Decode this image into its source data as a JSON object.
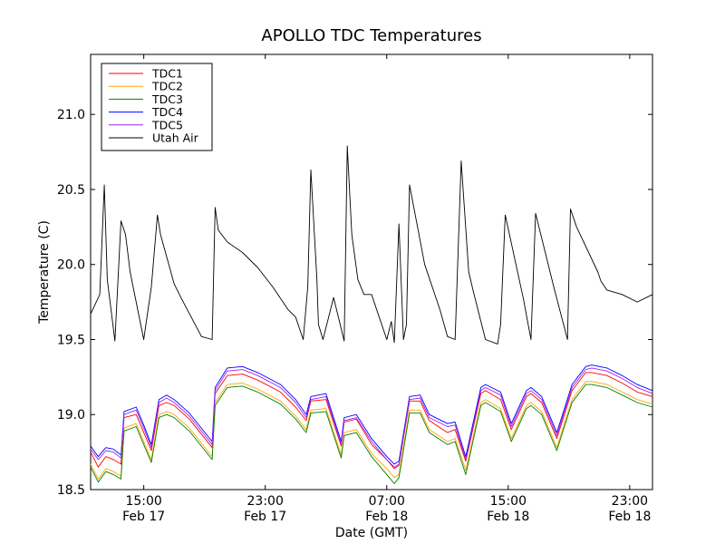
{
  "chart_data": {
    "type": "line",
    "title": "APOLLO TDC Temperatures",
    "xlabel": "Date (GMT)",
    "ylabel": "Temperature (C)",
    "ylim": [
      18.5,
      21.4
    ],
    "xlim_hours": [
      0,
      37
    ],
    "grid": false,
    "legend_position": "top-left",
    "yticks": [
      {
        "value": 18.5,
        "label": "18.5"
      },
      {
        "value": 19.0,
        "label": "19.0"
      },
      {
        "value": 19.5,
        "label": "19.5"
      },
      {
        "value": 20.0,
        "label": "20.0"
      },
      {
        "value": 20.5,
        "label": "20.5"
      },
      {
        "value": 21.0,
        "label": "21.0"
      }
    ],
    "xticks": [
      {
        "hour": 3.5,
        "time": "15:00",
        "date": "Feb 17"
      },
      {
        "hour": 11.5,
        "time": "23:00",
        "date": "Feb 17"
      },
      {
        "hour": 19.5,
        "time": "07:00",
        "date": "Feb 18"
      },
      {
        "hour": 27.5,
        "time": "15:00",
        "date": "Feb 18"
      },
      {
        "hour": 35.5,
        "time": "23:00",
        "date": "Feb 18"
      }
    ],
    "series": [
      {
        "name": "TDC1",
        "color": "#ff0000",
        "x": [
          0,
          0.5,
          1.0,
          1.5,
          2.0,
          2.2,
          3.0,
          3.5,
          4.0,
          4.5,
          5.0,
          5.5,
          6.5,
          8.0,
          8.2,
          9.0,
          10.0,
          11.0,
          12.5,
          13.5,
          14.2,
          14.5,
          15.5,
          16.5,
          16.7,
          17.5,
          18.5,
          19.5,
          20.0,
          20.3,
          21.0,
          21.7,
          22.3,
          23.5,
          24.0,
          24.7,
          25.7,
          26.0,
          27.0,
          27.7,
          28.7,
          29.0,
          29.7,
          30.7,
          31.7,
          32.6,
          33.0,
          34.0,
          35.0,
          36.0,
          37.0
        ],
        "y": [
          18.75,
          18.65,
          18.72,
          18.7,
          18.67,
          18.98,
          19.0,
          18.88,
          18.76,
          19.06,
          19.08,
          19.06,
          18.97,
          18.78,
          19.14,
          19.26,
          19.27,
          19.23,
          19.15,
          19.05,
          18.96,
          19.09,
          19.1,
          18.79,
          18.95,
          18.97,
          18.8,
          18.7,
          18.64,
          18.66,
          19.09,
          19.09,
          18.96,
          18.88,
          18.9,
          18.69,
          19.14,
          19.16,
          19.1,
          18.9,
          19.12,
          19.14,
          19.08,
          18.84,
          19.16,
          19.28,
          19.28,
          19.26,
          19.21,
          19.15,
          19.12
        ]
      },
      {
        "name": "TDC2",
        "color": "#ffa500",
        "x": [
          0,
          0.5,
          1.0,
          1.5,
          2.0,
          2.2,
          3.0,
          3.5,
          4.0,
          4.5,
          5.0,
          5.5,
          6.5,
          8.0,
          8.2,
          9.0,
          10.0,
          11.0,
          12.5,
          13.5,
          14.2,
          14.5,
          15.5,
          16.5,
          16.7,
          17.5,
          18.5,
          19.5,
          20.0,
          20.3,
          21.0,
          21.7,
          22.3,
          23.5,
          24.0,
          24.7,
          25.7,
          26.0,
          27.0,
          27.7,
          28.7,
          29.0,
          29.7,
          30.7,
          31.7,
          32.6,
          33.0,
          34.0,
          35.0,
          36.0,
          37.0
        ],
        "y": [
          18.67,
          18.57,
          18.64,
          18.62,
          18.59,
          18.91,
          18.94,
          18.82,
          18.7,
          19.0,
          19.02,
          19.0,
          18.91,
          18.72,
          19.08,
          19.2,
          19.21,
          19.17,
          19.09,
          18.99,
          18.9,
          19.03,
          19.04,
          18.73,
          18.88,
          18.9,
          18.74,
          18.64,
          18.58,
          18.6,
          19.03,
          19.03,
          18.9,
          18.82,
          18.84,
          18.63,
          19.08,
          19.1,
          19.04,
          18.84,
          19.06,
          19.08,
          19.02,
          18.78,
          19.1,
          19.22,
          19.22,
          19.2,
          19.15,
          19.1,
          19.07
        ]
      },
      {
        "name": "TDC3",
        "color": "#008000",
        "x": [
          0,
          0.5,
          1.0,
          1.5,
          2.0,
          2.2,
          3.0,
          3.5,
          4.0,
          4.5,
          5.0,
          5.5,
          6.5,
          8.0,
          8.2,
          9.0,
          10.0,
          11.0,
          12.5,
          13.5,
          14.2,
          14.5,
          15.5,
          16.5,
          16.7,
          17.5,
          18.5,
          19.5,
          20.0,
          20.3,
          21.0,
          21.7,
          22.3,
          23.5,
          24.0,
          24.7,
          25.7,
          26.0,
          27.0,
          27.7,
          28.7,
          29.0,
          29.7,
          30.7,
          31.7,
          32.6,
          33.0,
          34.0,
          35.0,
          36.0,
          37.0
        ],
        "y": [
          18.65,
          18.55,
          18.62,
          18.6,
          18.57,
          18.89,
          18.92,
          18.8,
          18.68,
          18.98,
          19.0,
          18.98,
          18.89,
          18.7,
          19.06,
          19.18,
          19.19,
          19.15,
          19.07,
          18.97,
          18.88,
          19.01,
          19.02,
          18.71,
          18.86,
          18.88,
          18.72,
          18.6,
          18.54,
          18.58,
          19.01,
          19.01,
          18.88,
          18.8,
          18.82,
          18.6,
          19.06,
          19.08,
          19.02,
          18.82,
          19.04,
          19.06,
          19.0,
          18.76,
          19.08,
          19.2,
          19.2,
          19.18,
          19.13,
          19.08,
          19.05
        ]
      },
      {
        "name": "TDC4",
        "color": "#0000ff",
        "x": [
          0,
          0.5,
          1.0,
          1.5,
          2.0,
          2.2,
          3.0,
          3.5,
          4.0,
          4.5,
          5.0,
          5.5,
          6.5,
          8.0,
          8.2,
          9.0,
          10.0,
          11.0,
          12.5,
          13.5,
          14.2,
          14.5,
          15.5,
          16.5,
          16.7,
          17.5,
          18.5,
          19.5,
          20.0,
          20.3,
          21.0,
          21.7,
          22.3,
          23.5,
          24.0,
          24.7,
          25.7,
          26.0,
          27.0,
          27.7,
          28.7,
          29.0,
          29.7,
          30.7,
          31.7,
          32.6,
          33.0,
          34.0,
          35.0,
          36.0,
          37.0
        ],
        "y": [
          18.79,
          18.72,
          18.78,
          18.77,
          18.73,
          19.02,
          19.05,
          18.93,
          18.8,
          19.1,
          19.13,
          19.1,
          19.01,
          18.82,
          19.18,
          19.31,
          19.32,
          19.28,
          19.2,
          19.1,
          19.0,
          19.12,
          19.14,
          18.82,
          18.98,
          19.0,
          18.84,
          18.72,
          18.67,
          18.69,
          19.12,
          19.13,
          19.0,
          18.94,
          18.95,
          18.72,
          19.18,
          19.2,
          19.15,
          18.94,
          19.16,
          19.18,
          19.12,
          18.88,
          19.2,
          19.32,
          19.33,
          19.31,
          19.26,
          19.2,
          19.16
        ]
      },
      {
        "name": "TDC5",
        "color": "#a020f0",
        "x": [
          0,
          0.5,
          1.0,
          1.5,
          2.0,
          2.2,
          3.0,
          3.5,
          4.0,
          4.5,
          5.0,
          5.5,
          6.5,
          8.0,
          8.2,
          9.0,
          10.0,
          11.0,
          12.5,
          13.5,
          14.2,
          14.5,
          15.5,
          16.5,
          16.7,
          17.5,
          18.5,
          19.5,
          20.0,
          20.3,
          21.0,
          21.7,
          22.3,
          23.5,
          24.0,
          24.7,
          25.7,
          26.0,
          27.0,
          27.7,
          28.7,
          29.0,
          29.7,
          30.7,
          31.7,
          32.6,
          33.0,
          34.0,
          35.0,
          36.0,
          37.0
        ],
        "y": [
          18.77,
          18.7,
          18.76,
          18.75,
          18.71,
          19.0,
          19.03,
          18.91,
          18.78,
          19.08,
          19.11,
          19.08,
          18.99,
          18.8,
          19.16,
          19.29,
          19.3,
          19.26,
          19.18,
          19.08,
          18.98,
          19.1,
          19.12,
          18.8,
          18.96,
          18.98,
          18.82,
          18.7,
          18.65,
          18.67,
          19.1,
          19.11,
          18.98,
          18.92,
          18.93,
          18.7,
          19.16,
          19.18,
          19.13,
          18.92,
          19.14,
          19.16,
          19.1,
          18.86,
          19.18,
          19.3,
          19.31,
          19.29,
          19.24,
          19.18,
          19.14
        ]
      },
      {
        "name": "Utah Air",
        "color": "#000000",
        "x": [
          0,
          0.6,
          0.9,
          1.1,
          1.6,
          2.0,
          2.3,
          2.6,
          3.5,
          4.0,
          4.4,
          4.6,
          5.5,
          6.0,
          7.3,
          8.0,
          8.2,
          8.4,
          9.0,
          10.0,
          11.0,
          12.0,
          13.0,
          13.5,
          14.0,
          14.3,
          14.5,
          14.9,
          15.0,
          15.3,
          16.0,
          16.7,
          16.9,
          17.2,
          17.6,
          18.0,
          18.5,
          19.5,
          19.8,
          20.0,
          20.3,
          20.6,
          20.8,
          21.0,
          22.0,
          23.0,
          23.5,
          24.0,
          24.4,
          24.9,
          25.2,
          26.0,
          26.8,
          27.0,
          27.3,
          28.5,
          29.0,
          29.3,
          30.5,
          31.4,
          31.6,
          32.0,
          33.4,
          33.6,
          34.0,
          35.0,
          36.0,
          37.0
        ],
        "y": [
          19.67,
          19.8,
          20.53,
          19.9,
          19.49,
          20.29,
          20.2,
          19.95,
          19.5,
          19.85,
          20.33,
          20.2,
          19.87,
          19.77,
          19.52,
          19.5,
          20.38,
          20.23,
          20.15,
          20.08,
          19.98,
          19.85,
          19.7,
          19.65,
          19.5,
          19.85,
          20.63,
          19.9,
          19.6,
          19.5,
          19.78,
          19.49,
          20.79,
          20.2,
          19.9,
          19.8,
          19.8,
          19.5,
          19.62,
          19.48,
          20.27,
          19.5,
          19.6,
          20.53,
          20.0,
          19.7,
          19.52,
          19.5,
          20.69,
          19.95,
          19.82,
          19.5,
          19.47,
          19.6,
          20.33,
          19.77,
          19.5,
          20.34,
          19.85,
          19.5,
          20.37,
          20.25,
          19.95,
          19.89,
          19.83,
          19.8,
          19.75,
          19.8
        ]
      }
    ]
  }
}
